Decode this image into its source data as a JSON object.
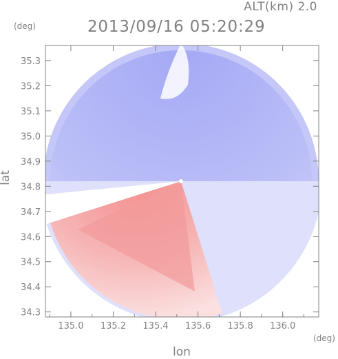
{
  "header": {
    "altitude_label": "ALT(km) 2.0",
    "timestamp": "2013/09/16 05:20:29"
  },
  "chart_data": {
    "type": "heatmap",
    "title": "2013/09/16 05:20:29",
    "xlabel": "lon",
    "ylabel": "lat",
    "x_unit": "(deg)",
    "y_unit": "(deg)",
    "xlim": [
      134.88,
      136.17
    ],
    "ylim": [
      34.28,
      35.36
    ],
    "x_ticks": [
      135.0,
      135.2,
      135.4,
      135.6,
      135.8,
      136.0
    ],
    "x_tick_labels": [
      "135.0",
      "135.2",
      "135.4",
      "135.6",
      "135.8",
      "136.0"
    ],
    "y_ticks": [
      34.3,
      34.4,
      34.5,
      34.6,
      34.7,
      34.8,
      34.9,
      35.0,
      35.1,
      35.2,
      35.3
    ],
    "y_tick_labels": [
      "34.3",
      "34.4",
      "34.5",
      "34.6",
      "34.7",
      "34.8",
      "34.9",
      "35.0",
      "35.1",
      "35.2",
      "35.3"
    ],
    "radar_center": [
      135.52,
      34.82
    ],
    "grid": false,
    "colors": {
      "approaching": "#7f86f0",
      "receding": "#f07f7f",
      "neutral": "#ffffff",
      "frame": "#808080"
    }
  }
}
